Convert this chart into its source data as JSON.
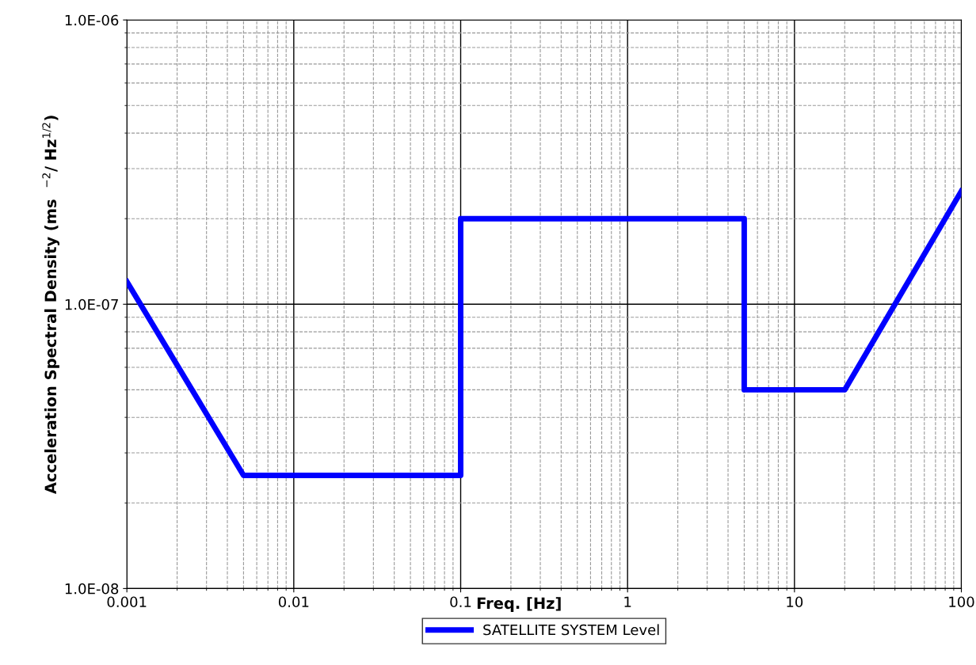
{
  "chart_data": {
    "type": "line",
    "xlabel": "Freq. [Hz]",
    "ylabel": "Acceleration Spectral Density (ms  $^{−2}$/ Hz$^{1/2}$)",
    "log": "xy",
    "grid": true,
    "legend": "bottom",
    "marker": "none",
    "line_style": "solid",
    "xlim": [
      0.001,
      100
    ],
    "ylim": [
      1e-08,
      1e-06
    ],
    "xticks": [
      0.001,
      0.01,
      0.1,
      1,
      10,
      100
    ],
    "yticks": [
      {
        "value": 1e-08,
        "label": "1.0E-08"
      },
      {
        "value": 1e-07,
        "label": "1.0E-07"
      },
      {
        "value": 1e-06,
        "label": "1.0E-06"
      }
    ],
    "series": [
      {
        "name": "SATELLITE SYSTEM Level",
        "color": "#0000ff",
        "x": [
          0.001,
          0.005,
          0.1,
          0.1,
          5,
          5,
          20,
          100
        ],
        "values": [
          1.2e-07,
          2.5e-08,
          2.5e-08,
          2e-07,
          2e-07,
          5e-08,
          5e-08,
          2.5e-07
        ]
      }
    ]
  }
}
